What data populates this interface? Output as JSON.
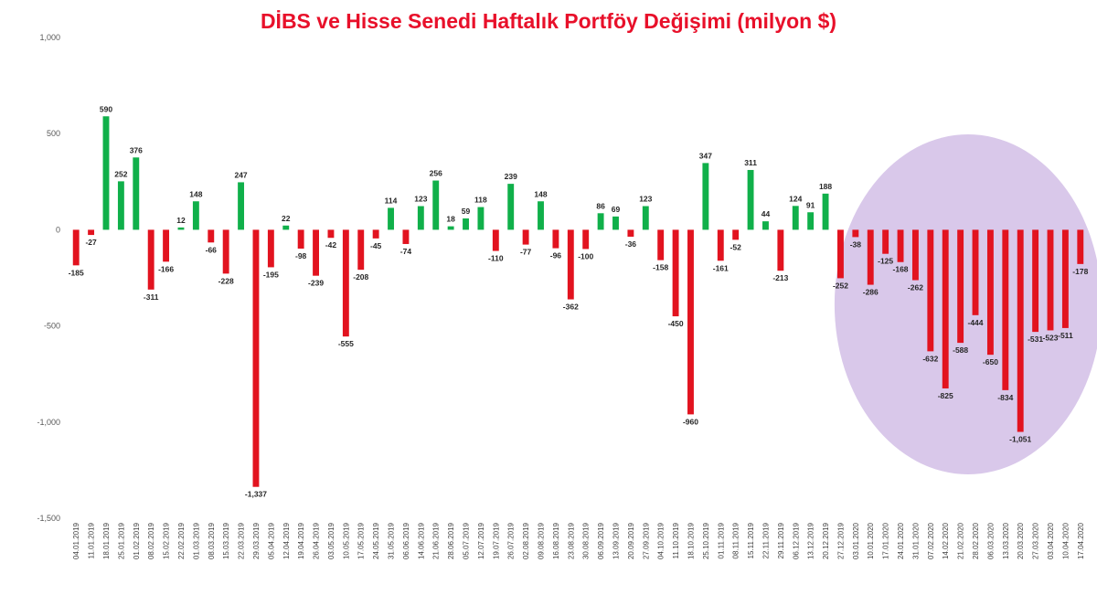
{
  "chart_data": {
    "type": "bar",
    "title": "DİBS ve Hisse Senedi Haftalık Portföy Değişimi (milyon $)",
    "xlabel": "",
    "ylabel": "",
    "ylim": [
      -1500,
      1000
    ],
    "yticks": [
      1000,
      500,
      0,
      -500,
      -1000,
      -1500
    ],
    "ytick_labels": [
      "1,000",
      "500",
      "0",
      "-500",
      "-1,000",
      "-1,500"
    ],
    "grid": false,
    "legend": "none",
    "colors": {
      "positive": "#10b04a",
      "negative": "#e2131f",
      "highlight": "#d9c8ea"
    },
    "categories": [
      "04.01.2019",
      "11.01.2019",
      "18.01.2019",
      "25.01.2019",
      "01.02.2019",
      "08.02.2019",
      "15.02.2019",
      "22.02.2019",
      "01.03.2019",
      "08.03.2019",
      "15.03.2019",
      "22.03.2019",
      "29.03.2019",
      "05.04.2019",
      "12.04.2019",
      "19.04.2019",
      "26.04.2019",
      "03.05.2019",
      "10.05.2019",
      "17.05.2019",
      "24.05.2019",
      "31.05.2019",
      "06.06.2019",
      "14.06.2019",
      "21.06.2019",
      "28.06.2019",
      "05.07.2019",
      "12.07.2019",
      "19.07.2019",
      "26.07.2019",
      "02.08.2019",
      "09.08.2019",
      "16.08.2019",
      "23.08.2019",
      "30.08.2019",
      "06.09.2019",
      "13.09.2019",
      "20.09.2019",
      "27.09.2019",
      "04.10.2019",
      "11.10.2019",
      "18.10.2019",
      "25.10.2019",
      "01.11.2019",
      "08.11.2019",
      "15.11.2019",
      "22.11.2019",
      "29.11.2019",
      "06.12.2019",
      "13.12.2019",
      "20.12.2019",
      "27.12.2019",
      "03.01.2020",
      "10.01.2020",
      "17.01.2020",
      "24.01.2020",
      "31.01.2020",
      "07.02.2020",
      "14.02.2020",
      "21.02.2020",
      "28.02.2020",
      "06.03.2020",
      "13.03.2020",
      "20.03.2020",
      "27.03.2020",
      "03.04.2020",
      "10.04.2020",
      "17.04.2020"
    ],
    "values": [
      -185,
      -27,
      590,
      252,
      376,
      -311,
      -166,
      12,
      148,
      -66,
      -228,
      247,
      -1337,
      -195,
      22,
      -98,
      -239,
      -42,
      -555,
      -208,
      -45,
      114,
      -74,
      123,
      256,
      18,
      59,
      118,
      -110,
      239,
      -77,
      148,
      -96,
      -362,
      -100,
      86,
      69,
      -36,
      123,
      -158,
      -450,
      -960,
      347,
      -161,
      -52,
      311,
      44,
      -213,
      124,
      91,
      188,
      -252,
      -38,
      -286,
      -125,
      -168,
      -262,
      -632,
      -825,
      -588,
      -444,
      -650,
      -834,
      -1051,
      -531,
      -523,
      -511,
      -178
    ],
    "data_labels": [
      "-185",
      "-27",
      "590",
      "252",
      "376",
      "-311",
      "-166",
      "12",
      "148",
      "-66",
      "-228",
      "247",
      "-1,337",
      "-195",
      "22",
      "-98",
      "-239",
      "-42",
      "-555",
      "-208",
      "-45",
      "114",
      "-74",
      "123",
      "256",
      "18",
      "59",
      "118",
      "-110",
      "239",
      "-77",
      "148",
      "-96",
      "-362",
      "-100",
      "86",
      "69",
      "-36",
      "123",
      "-158",
      "-450",
      "-960",
      "347",
      "-161",
      "-52",
      "311",
      "44",
      "-213",
      "124",
      "91",
      "188",
      "-252",
      "-38",
      "-286",
      "-125",
      "-168",
      "-262",
      "-632",
      "-825",
      "-588",
      "-444",
      "-650",
      "-834",
      "-1,051",
      "-531",
      "-523",
      "-511",
      "-178"
    ],
    "highlight_first_index": 51
  }
}
